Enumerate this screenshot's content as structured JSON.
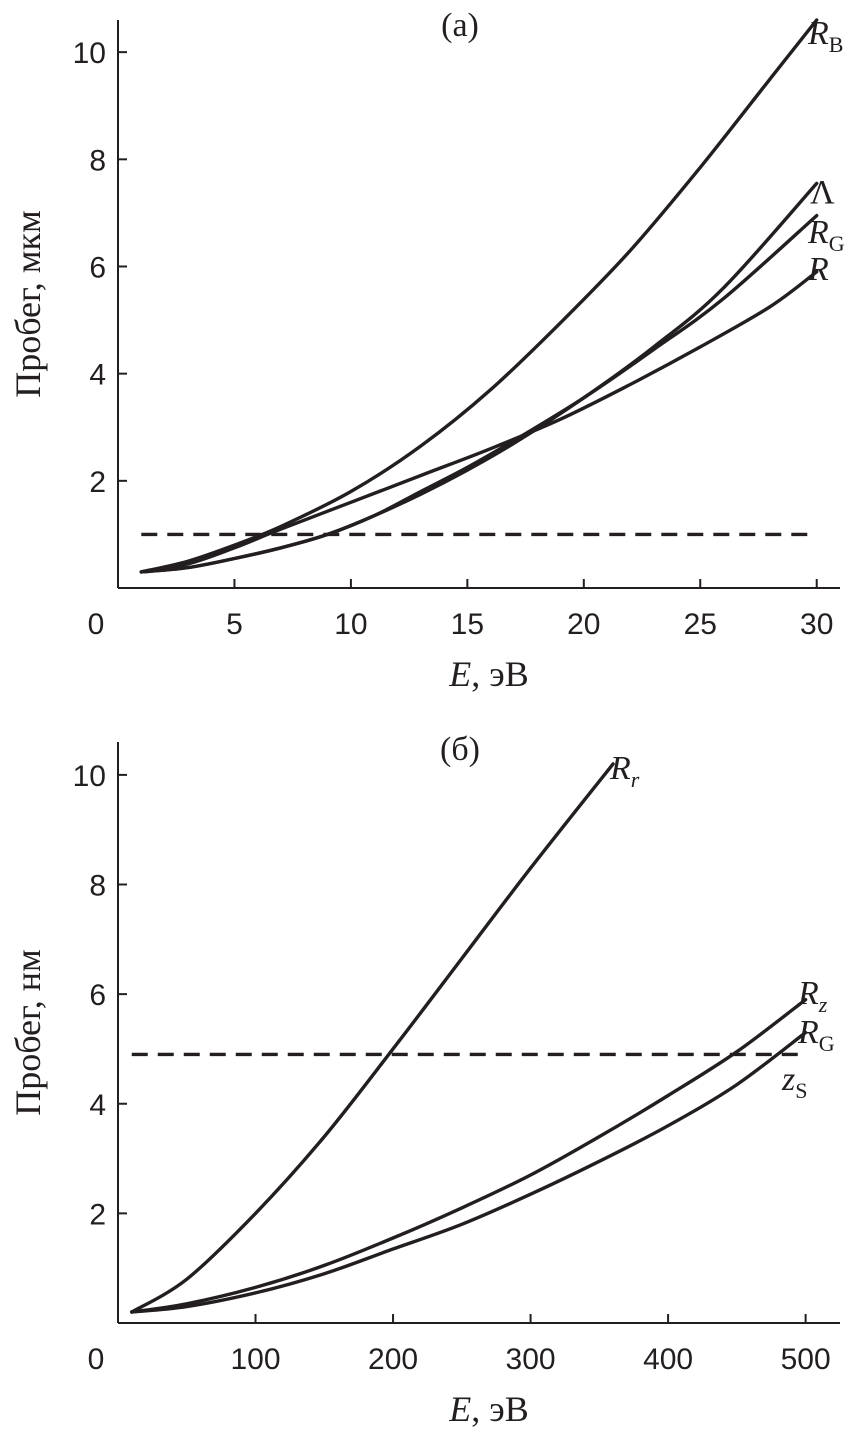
{
  "chart_data": [
    {
      "type": "line",
      "panel_label": "(a)",
      "xlabel": {
        "var": "E",
        "unit": ", эВ"
      },
      "ylabel": "Пробег, мкм",
      "xlim": [
        0,
        31
      ],
      "ylim": [
        0,
        10.6
      ],
      "xticks": [
        0,
        5,
        10,
        15,
        20,
        25,
        30
      ],
      "yticks": [
        2,
        4,
        6,
        8,
        10
      ],
      "series": [
        {
          "name": "R_B",
          "label": {
            "main": "R",
            "sub": "B",
            "sub_italic": false
          },
          "x": [
            1,
            3,
            5,
            7,
            10,
            13,
            16,
            19,
            22,
            25,
            28,
            30
          ],
          "y": [
            0.3,
            0.5,
            0.8,
            1.15,
            1.8,
            2.65,
            3.7,
            4.95,
            6.3,
            7.85,
            9.5,
            10.6
          ]
        },
        {
          "name": "Λ",
          "label": {
            "main": "Λ",
            "sub": "",
            "sub_italic": false
          },
          "x": [
            1,
            3,
            5,
            7,
            9,
            11,
            13,
            15,
            17,
            20,
            23,
            26,
            30
          ],
          "y": [
            0.3,
            0.38,
            0.55,
            0.75,
            1.0,
            1.35,
            1.75,
            2.2,
            2.7,
            3.55,
            4.5,
            5.6,
            7.55
          ]
        },
        {
          "name": "R_G",
          "label": {
            "main": "R",
            "sub": "G",
            "sub_italic": false
          },
          "x": [
            1,
            3,
            5,
            7,
            9,
            11,
            13,
            15,
            17,
            20,
            23,
            26,
            30
          ],
          "y": [
            0.3,
            0.38,
            0.55,
            0.75,
            1.0,
            1.35,
            1.8,
            2.25,
            2.75,
            3.55,
            4.45,
            5.4,
            6.95
          ]
        },
        {
          "name": "R",
          "label": {
            "main": "R",
            "sub": "",
            "sub_italic": false
          },
          "x": [
            1,
            3,
            5,
            7,
            10,
            13,
            16,
            19,
            22,
            25,
            28,
            30
          ],
          "y": [
            0.3,
            0.45,
            0.75,
            1.1,
            1.6,
            2.1,
            2.6,
            3.15,
            3.8,
            4.5,
            5.25,
            5.9
          ]
        }
      ],
      "reference_line": {
        "y": 1.0,
        "x_range": [
          1,
          30
        ],
        "style": "dashed"
      }
    },
    {
      "type": "line",
      "panel_label": "(б)",
      "xlabel": {
        "var": "E",
        "unit": ", эВ"
      },
      "ylabel": "Пробег, нм",
      "xlim": [
        0,
        525
      ],
      "ylim": [
        0,
        10.6
      ],
      "xticks": [
        0,
        100,
        200,
        300,
        400,
        500
      ],
      "yticks": [
        2,
        4,
        6,
        8,
        10
      ],
      "series": [
        {
          "name": "R_r",
          "label": {
            "main": "R",
            "sub": "r",
            "sub_italic": true
          },
          "x": [
            10,
            50,
            100,
            150,
            200,
            250,
            300,
            360
          ],
          "y": [
            0.2,
            0.8,
            2.0,
            3.4,
            5.0,
            6.65,
            8.3,
            10.2
          ]
        },
        {
          "name": "R_z",
          "label": {
            "main": "R",
            "sub": "z",
            "sub_italic": true
          },
          "x": [
            10,
            50,
            100,
            150,
            200,
            250,
            300,
            350,
            400,
            450,
            500
          ],
          "y": [
            0.2,
            0.35,
            0.65,
            1.05,
            1.55,
            2.1,
            2.7,
            3.4,
            4.15,
            4.95,
            5.9
          ]
        },
        {
          "name": "R_G",
          "label": {
            "main": "R",
            "sub": "G",
            "sub_italic": false
          },
          "x": [
            10,
            50,
            100,
            150,
            200,
            250,
            300,
            350,
            400,
            450,
            500
          ],
          "y": [
            0.2,
            0.3,
            0.55,
            0.9,
            1.35,
            1.8,
            2.35,
            2.95,
            3.6,
            4.35,
            5.3
          ]
        },
        {
          "name": "z_S",
          "label": {
            "main": "z",
            "sub": "S",
            "sub_italic": false
          },
          "x": [],
          "y": []
        }
      ],
      "reference_line": {
        "y": 4.9,
        "x_range": [
          10,
          500
        ],
        "style": "dashed"
      }
    }
  ]
}
